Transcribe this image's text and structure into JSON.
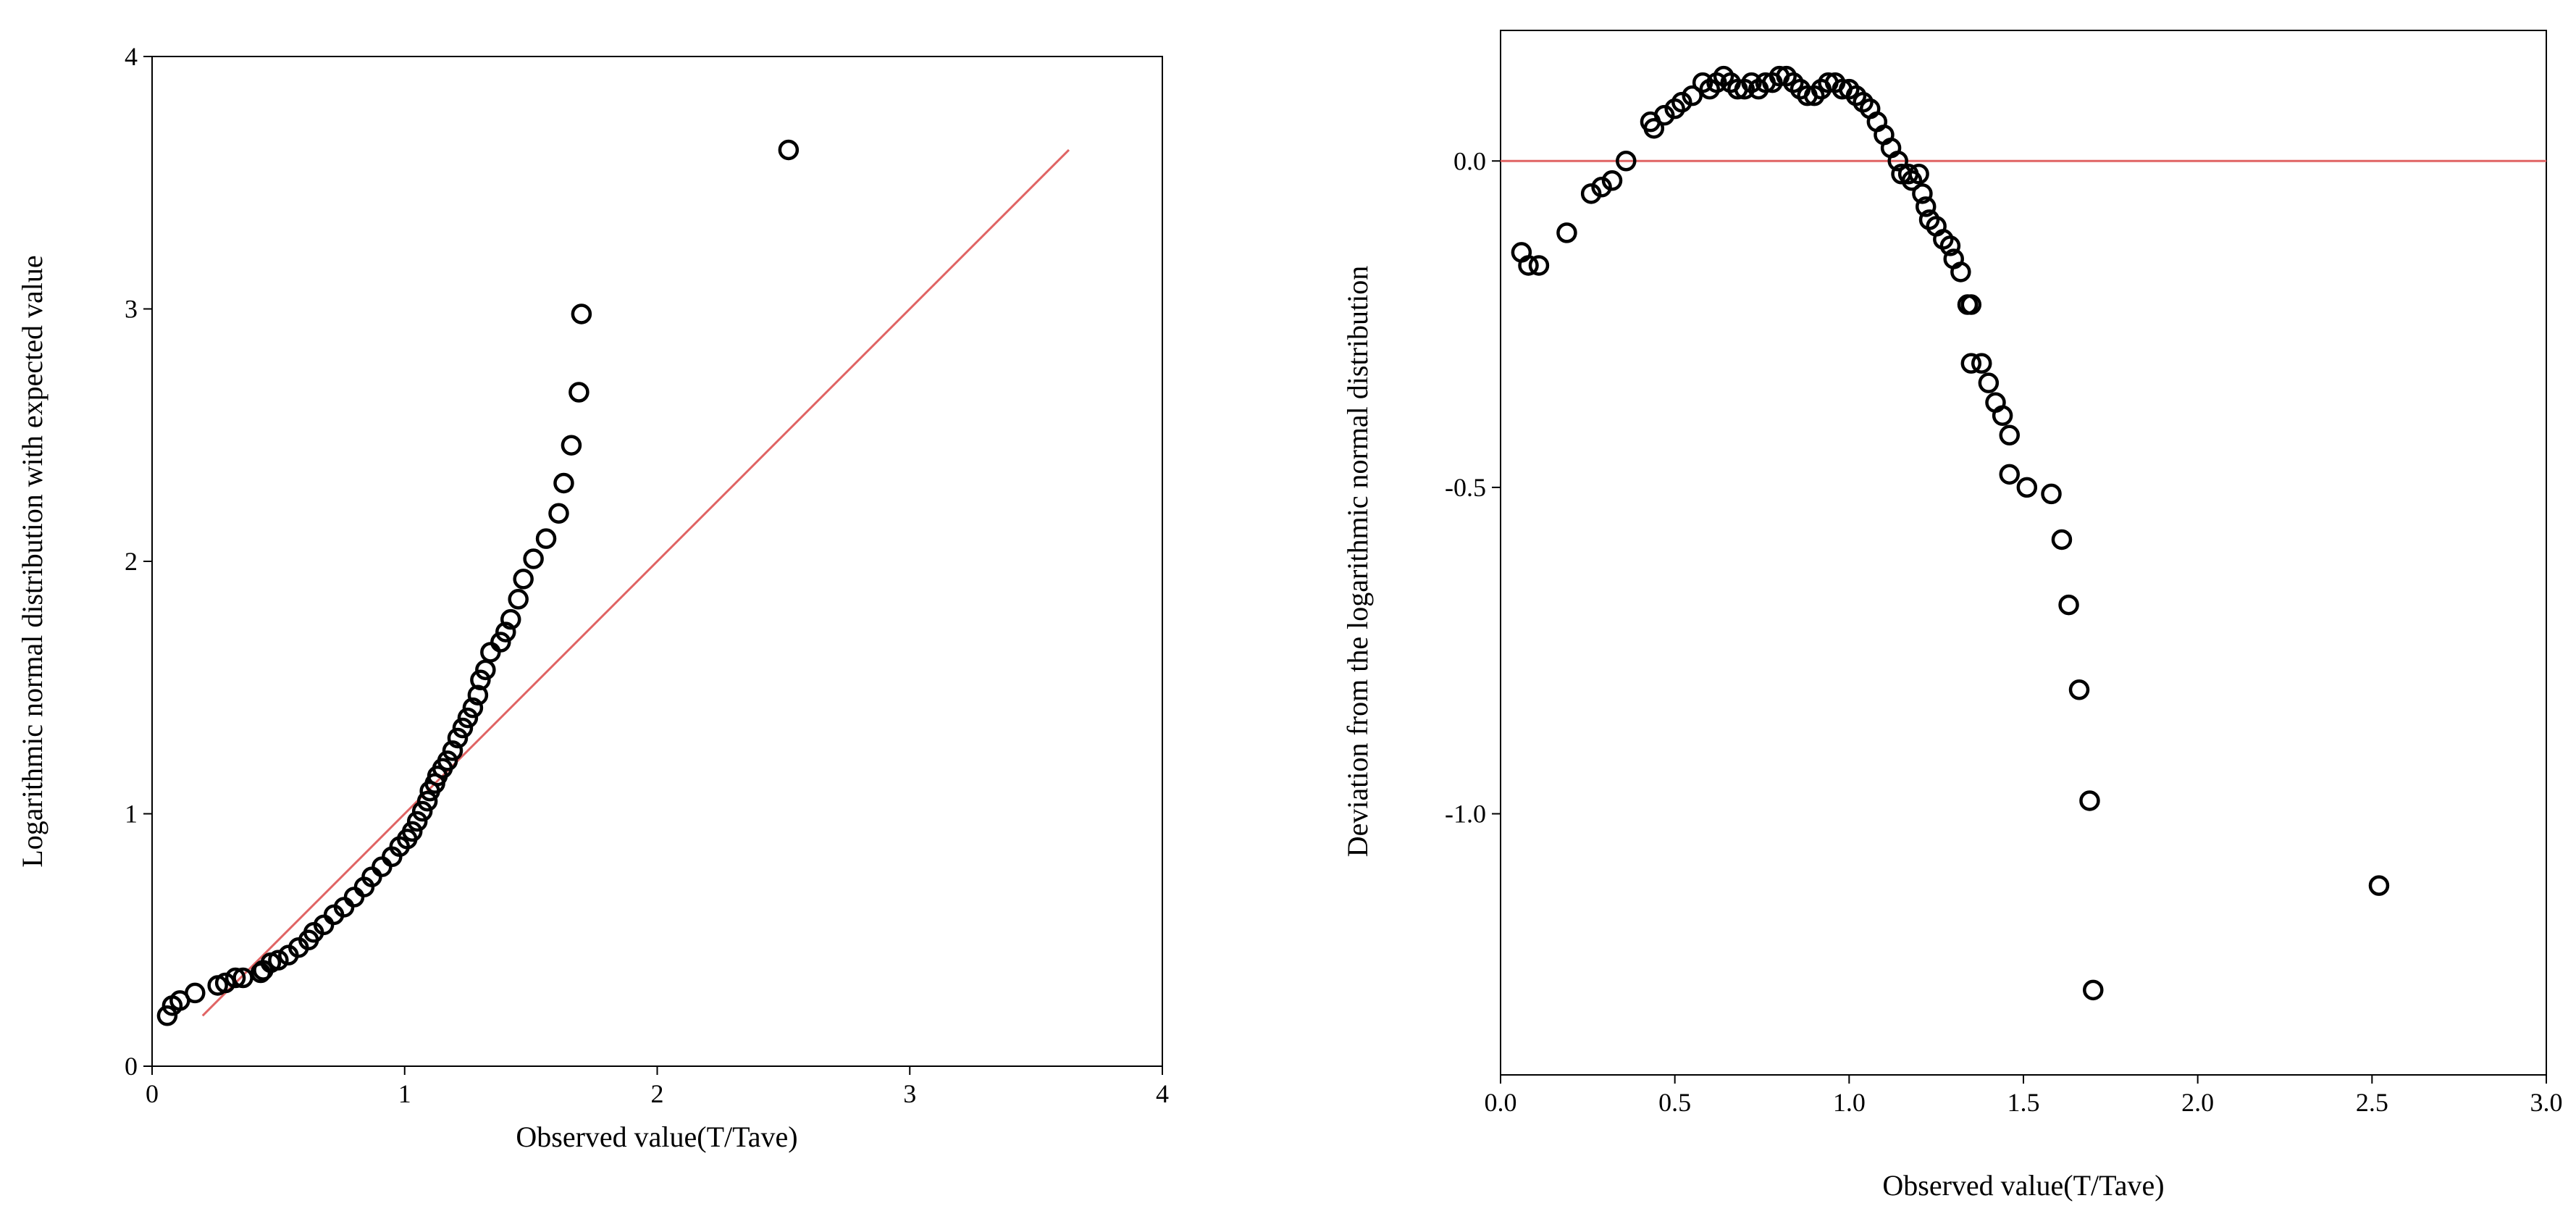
{
  "chart_data": [
    {
      "type": "scatter",
      "subtype": "qq-plot",
      "title": "",
      "xlabel": "Observed value(T/Tave)",
      "ylabel": "Logarithmic normal distribution with expected value",
      "xlim": [
        0,
        4
      ],
      "ylim": [
        0,
        4
      ],
      "xticks": [
        "0",
        "1",
        "2",
        "3",
        "4"
      ],
      "yticks": [
        "0",
        "1",
        "2",
        "3",
        "4"
      ],
      "grid": false,
      "legend": "none",
      "marker_color": "#000000",
      "reference_line": {
        "color": "#e06464",
        "x": [
          0.2,
          3.63
        ],
        "y": [
          0.2,
          3.63
        ]
      },
      "points": [
        [
          0.06,
          0.2
        ],
        [
          0.08,
          0.24
        ],
        [
          0.11,
          0.26
        ],
        [
          0.17,
          0.29
        ],
        [
          0.26,
          0.32
        ],
        [
          0.29,
          0.33
        ],
        [
          0.33,
          0.35
        ],
        [
          0.36,
          0.35
        ],
        [
          0.43,
          0.37
        ],
        [
          0.44,
          0.38
        ],
        [
          0.47,
          0.41
        ],
        [
          0.5,
          0.42
        ],
        [
          0.54,
          0.44
        ],
        [
          0.58,
          0.47
        ],
        [
          0.62,
          0.5
        ],
        [
          0.64,
          0.53
        ],
        [
          0.68,
          0.56
        ],
        [
          0.72,
          0.6
        ],
        [
          0.76,
          0.63
        ],
        [
          0.8,
          0.67
        ],
        [
          0.84,
          0.71
        ],
        [
          0.87,
          0.75
        ],
        [
          0.91,
          0.79
        ],
        [
          0.95,
          0.83
        ],
        [
          0.98,
          0.87
        ],
        [
          1.01,
          0.9
        ],
        [
          1.03,
          0.93
        ],
        [
          1.05,
          0.97
        ],
        [
          1.07,
          1.01
        ],
        [
          1.09,
          1.05
        ],
        [
          1.1,
          1.09
        ],
        [
          1.12,
          1.12
        ],
        [
          1.13,
          1.15
        ],
        [
          1.15,
          1.18
        ],
        [
          1.17,
          1.21
        ],
        [
          1.19,
          1.25
        ],
        [
          1.21,
          1.3
        ],
        [
          1.23,
          1.34
        ],
        [
          1.25,
          1.38
        ],
        [
          1.27,
          1.42
        ],
        [
          1.29,
          1.47
        ],
        [
          1.3,
          1.53
        ],
        [
          1.32,
          1.57
        ],
        [
          1.34,
          1.64
        ],
        [
          1.38,
          1.68
        ],
        [
          1.4,
          1.72
        ],
        [
          1.42,
          1.77
        ],
        [
          1.45,
          1.85
        ],
        [
          1.47,
          1.93
        ],
        [
          1.51,
          2.01
        ],
        [
          1.56,
          2.09
        ],
        [
          1.61,
          2.19
        ],
        [
          1.63,
          2.31
        ],
        [
          1.66,
          2.46
        ],
        [
          1.69,
          2.67
        ],
        [
          1.7,
          2.98
        ],
        [
          2.52,
          3.63
        ]
      ]
    },
    {
      "type": "scatter",
      "subtype": "detrended-qq-plot",
      "title": "",
      "xlabel": "Observed value(T/Tave)",
      "ylabel": "Deviation from the logarithmic normal distribution",
      "xlim": [
        0,
        3
      ],
      "ylim": [
        -1.4,
        0.2
      ],
      "xticks": [
        "0.0",
        "0.5",
        "1.0",
        "1.5",
        "2.0",
        "2.5",
        "3.0"
      ],
      "yticks": [
        "0.0",
        "-0.5",
        "-1.0"
      ],
      "grid": false,
      "legend": "none",
      "marker_color": "#000000",
      "reference_line": {
        "color": "#e06464",
        "y": 0
      },
      "points": [
        [
          0.06,
          -0.14
        ],
        [
          0.08,
          -0.16
        ],
        [
          0.11,
          -0.16
        ],
        [
          0.19,
          -0.11
        ],
        [
          0.26,
          -0.05
        ],
        [
          0.29,
          -0.04
        ],
        [
          0.32,
          -0.03
        ],
        [
          0.36,
          0.0
        ],
        [
          0.43,
          0.06
        ],
        [
          0.44,
          0.05
        ],
        [
          0.47,
          0.07
        ],
        [
          0.5,
          0.08
        ],
        [
          0.52,
          0.09
        ],
        [
          0.55,
          0.1
        ],
        [
          0.58,
          0.12
        ],
        [
          0.6,
          0.11
        ],
        [
          0.62,
          0.12
        ],
        [
          0.64,
          0.13
        ],
        [
          0.66,
          0.12
        ],
        [
          0.68,
          0.11
        ],
        [
          0.7,
          0.11
        ],
        [
          0.72,
          0.12
        ],
        [
          0.74,
          0.11
        ],
        [
          0.76,
          0.12
        ],
        [
          0.78,
          0.12
        ],
        [
          0.8,
          0.13
        ],
        [
          0.82,
          0.13
        ],
        [
          0.84,
          0.12
        ],
        [
          0.86,
          0.11
        ],
        [
          0.88,
          0.1
        ],
        [
          0.9,
          0.1
        ],
        [
          0.92,
          0.11
        ],
        [
          0.94,
          0.12
        ],
        [
          0.96,
          0.12
        ],
        [
          0.98,
          0.11
        ],
        [
          1.0,
          0.11
        ],
        [
          1.02,
          0.1
        ],
        [
          1.04,
          0.09
        ],
        [
          1.06,
          0.08
        ],
        [
          1.08,
          0.06
        ],
        [
          1.1,
          0.04
        ],
        [
          1.12,
          0.02
        ],
        [
          1.14,
          0.0
        ],
        [
          1.15,
          -0.02
        ],
        [
          1.17,
          -0.02
        ],
        [
          1.18,
          -0.03
        ],
        [
          1.2,
          -0.02
        ],
        [
          1.21,
          -0.05
        ],
        [
          1.22,
          -0.07
        ],
        [
          1.23,
          -0.09
        ],
        [
          1.25,
          -0.1
        ],
        [
          1.27,
          -0.12
        ],
        [
          1.29,
          -0.13
        ],
        [
          1.3,
          -0.15
        ],
        [
          1.32,
          -0.17
        ],
        [
          1.34,
          -0.22
        ],
        [
          1.35,
          -0.22
        ],
        [
          1.35,
          -0.31
        ],
        [
          1.38,
          -0.31
        ],
        [
          1.4,
          -0.34
        ],
        [
          1.42,
          -0.37
        ],
        [
          1.44,
          -0.39
        ],
        [
          1.46,
          -0.42
        ],
        [
          1.46,
          -0.48
        ],
        [
          1.51,
          -0.5
        ],
        [
          1.58,
          -0.51
        ],
        [
          1.61,
          -0.58
        ],
        [
          1.63,
          -0.68
        ],
        [
          1.66,
          -0.81
        ],
        [
          1.69,
          -0.98
        ],
        [
          1.7,
          -1.27
        ],
        [
          2.52,
          -1.11
        ]
      ]
    }
  ]
}
